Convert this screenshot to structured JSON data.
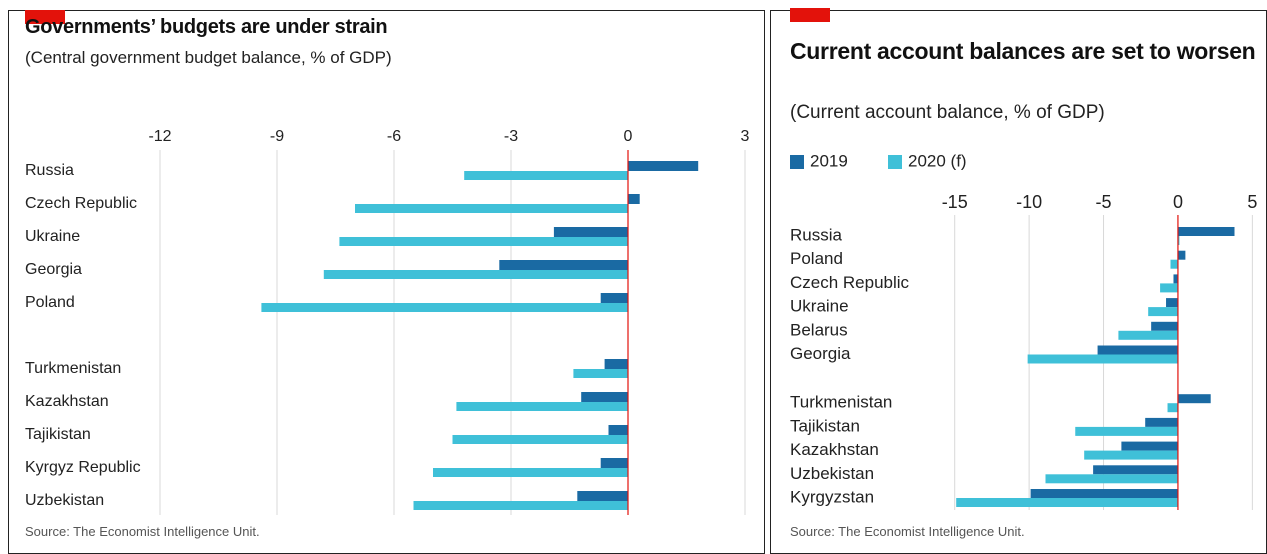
{
  "chart_data": [
    {
      "type": "bar",
      "orientation": "horizontal",
      "title": "Governments’ budgets are under strain",
      "subtitle": "(Central government budget balance, % of GDP)",
      "source": "Source: The Economist Intelligence Unit.",
      "categories": [
        "Russia",
        "Czech Republic",
        "Ukraine",
        "Georgia",
        "Poland",
        "Turkmenistan",
        "Kazakhstan",
        "Tajikistan",
        "Kyrgyz Republic",
        "Uzbekistan"
      ],
      "series": [
        {
          "color": "#1a6aa3",
          "values": [
            1.8,
            0.3,
            -1.9,
            -3.3,
            -0.7,
            -0.6,
            -1.2,
            -0.5,
            -0.7,
            -1.3
          ]
        },
        {
          "color": "#3fc0d8",
          "values": [
            -4.2,
            -7.0,
            -7.4,
            -7.8,
            -9.4,
            -1.4,
            -4.4,
            -4.5,
            -5.0,
            -5.5
          ]
        }
      ],
      "xlim": [
        -15.5,
        3.5
      ],
      "xticks": [
        -12,
        -9,
        -6,
        -3,
        0,
        3
      ],
      "grid": true,
      "legend": false
    },
    {
      "type": "bar",
      "orientation": "horizontal",
      "title": "Current account balances are set to worsen",
      "subtitle": "(Current account balance, % of GDP)",
      "source": "Source: The Economist Intelligence Unit.",
      "categories": [
        "Russia",
        "Poland",
        "Czech Republic",
        "Ukraine",
        "Belarus",
        "Georgia",
        "Turkmenistan",
        "Tajikistan",
        "Kazakhstan",
        "Uzbekistan",
        "Kyrgyzstan"
      ],
      "series": [
        {
          "name": "2019",
          "color": "#1a6aa3",
          "values": [
            3.8,
            0.5,
            -0.3,
            -0.8,
            -1.8,
            -5.4,
            2.2,
            -2.2,
            -3.8,
            -5.7,
            -9.9
          ]
        },
        {
          "name": "2020 (f)",
          "color": "#3fc0d8",
          "values": [
            0.1,
            -0.5,
            -1.2,
            -2.0,
            -4.0,
            -10.1,
            -0.7,
            -6.9,
            -6.3,
            -8.9,
            -14.9
          ]
        }
      ],
      "xlim": [
        -26,
        5.5
      ],
      "xticks": [
        -15,
        -10,
        -5,
        0,
        5
      ],
      "grid": true,
      "legend": true
    }
  ]
}
